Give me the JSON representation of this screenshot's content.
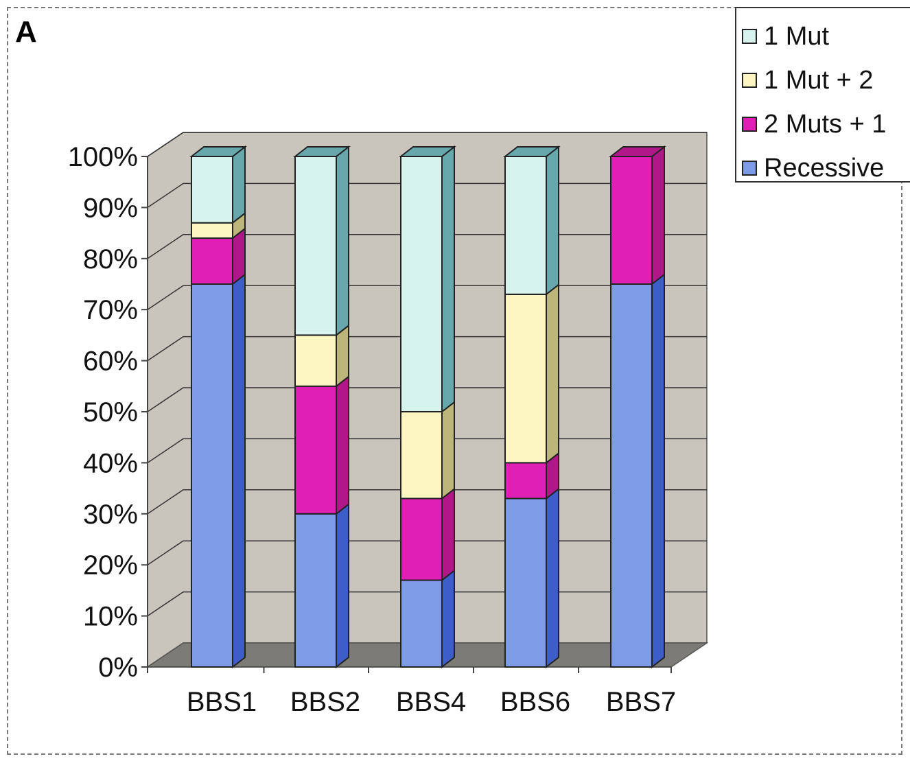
{
  "panel_label": "A",
  "chart_data": {
    "type": "bar",
    "stacked": true,
    "percent": true,
    "three_d": true,
    "categories": [
      "BBS1",
      "BBS2",
      "BBS4",
      "BBS6",
      "BBS7"
    ],
    "series": [
      {
        "name": "Recessive",
        "values": [
          75,
          30,
          17,
          33,
          75
        ]
      },
      {
        "name": "2 Muts + 1",
        "values": [
          9,
          25,
          16,
          7,
          25
        ]
      },
      {
        "name": "1 Mut + 2",
        "values": [
          3,
          10,
          17,
          33,
          0
        ]
      },
      {
        "name": "1 Mut",
        "values": [
          13,
          35,
          50,
          27,
          0
        ]
      }
    ],
    "yticks": [
      "0%",
      "10%",
      "20%",
      "30%",
      "40%",
      "50%",
      "60%",
      "70%",
      "80%",
      "90%",
      "100%"
    ],
    "ylim": [
      0,
      100
    ],
    "grid": true,
    "legend_position": "top-right",
    "colors": {
      "Recessive": "#7d9be6",
      "2 Muts + 1": "#e020b4",
      "1 Mut + 2": "#fdf5c2",
      "1 Mut": "#d6f3ee"
    },
    "side_colors": {
      "Recessive": "#3d5ec8",
      "2 Muts + 1": "#b0188a",
      "1 Mut + 2": "#bdb67a",
      "1 Mut": "#66a8ac"
    },
    "wall_color": "#c9c5bd",
    "floor_color": "#7d7b75"
  },
  "legend": {
    "items": [
      {
        "label": "1 Mut",
        "color": "#d6f3ee"
      },
      {
        "label": "1 Mut + 2",
        "color": "#fdf5c2"
      },
      {
        "label": "2 Muts + 1",
        "color": "#e020b4"
      },
      {
        "label": "Recessive",
        "color": "#7d9be6"
      }
    ]
  }
}
